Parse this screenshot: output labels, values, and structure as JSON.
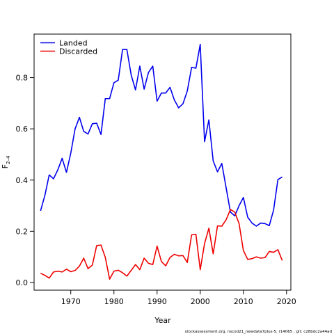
{
  "chart_data": {
    "type": "line",
    "xlabel": "Year",
    "ylabel_main": "F",
    "ylabel_sub": "2–4",
    "xlim": [
      1961.5,
      2021
    ],
    "ylim": [
      -0.03,
      0.97
    ],
    "xticks": [
      1970,
      1980,
      1990,
      2000,
      2010,
      2020
    ],
    "yticks": [
      0.0,
      0.2,
      0.4,
      0.6,
      0.8
    ],
    "ytick_labels": [
      "0.0",
      "0.2",
      "0.4",
      "0.6",
      "0.8"
    ],
    "grid": false,
    "legend_position": "top-left",
    "x": [
      1963,
      1964,
      1965,
      1966,
      1967,
      1968,
      1969,
      1970,
      1971,
      1972,
      1973,
      1974,
      1975,
      1976,
      1977,
      1978,
      1979,
      1980,
      1981,
      1982,
      1983,
      1984,
      1985,
      1986,
      1987,
      1988,
      1989,
      1990,
      1991,
      1992,
      1993,
      1994,
      1995,
      1996,
      1997,
      1998,
      1999,
      2000,
      2001,
      2002,
      2003,
      2004,
      2005,
      2006,
      2007,
      2008,
      2009,
      2010,
      2011,
      2012,
      2013,
      2014,
      2015,
      2016,
      2017,
      2018,
      2019
    ],
    "series": [
      {
        "name": "Landed",
        "color": "#0000ee",
        "values": [
          0.28,
          0.34,
          0.42,
          0.405,
          0.44,
          0.485,
          0.43,
          0.505,
          0.6,
          0.645,
          0.59,
          0.58,
          0.62,
          0.622,
          0.578,
          0.718,
          0.718,
          0.78,
          0.79,
          0.91,
          0.91,
          0.81,
          0.752,
          0.845,
          0.755,
          0.82,
          0.845,
          0.708,
          0.74,
          0.74,
          0.762,
          0.713,
          0.682,
          0.698,
          0.748,
          0.84,
          0.837,
          0.93,
          0.55,
          0.635,
          0.475,
          0.432,
          0.465,
          0.37,
          0.275,
          0.26,
          0.3,
          0.332,
          0.255,
          0.232,
          0.22,
          0.232,
          0.23,
          0.222,
          0.283,
          0.402,
          0.412
        ]
      },
      {
        "name": "Discarded",
        "color": "#ee0000",
        "values": [
          0.036,
          0.028,
          0.017,
          0.041,
          0.044,
          0.041,
          0.052,
          0.042,
          0.047,
          0.064,
          0.095,
          0.054,
          0.068,
          0.144,
          0.146,
          0.098,
          0.013,
          0.044,
          0.048,
          0.038,
          0.025,
          0.047,
          0.07,
          0.05,
          0.095,
          0.075,
          0.07,
          0.142,
          0.082,
          0.065,
          0.098,
          0.11,
          0.104,
          0.105,
          0.078,
          0.186,
          0.188,
          0.05,
          0.152,
          0.212,
          0.112,
          0.221,
          0.22,
          0.245,
          0.285,
          0.275,
          0.23,
          0.125,
          0.09,
          0.093,
          0.1,
          0.095,
          0.097,
          0.121,
          0.118,
          0.128,
          0.086
        ]
      }
    ]
  },
  "footnote": "stockassessment.org, nscod21_newdata7plus-5, r14065 , git: c28bdc2a44ad"
}
